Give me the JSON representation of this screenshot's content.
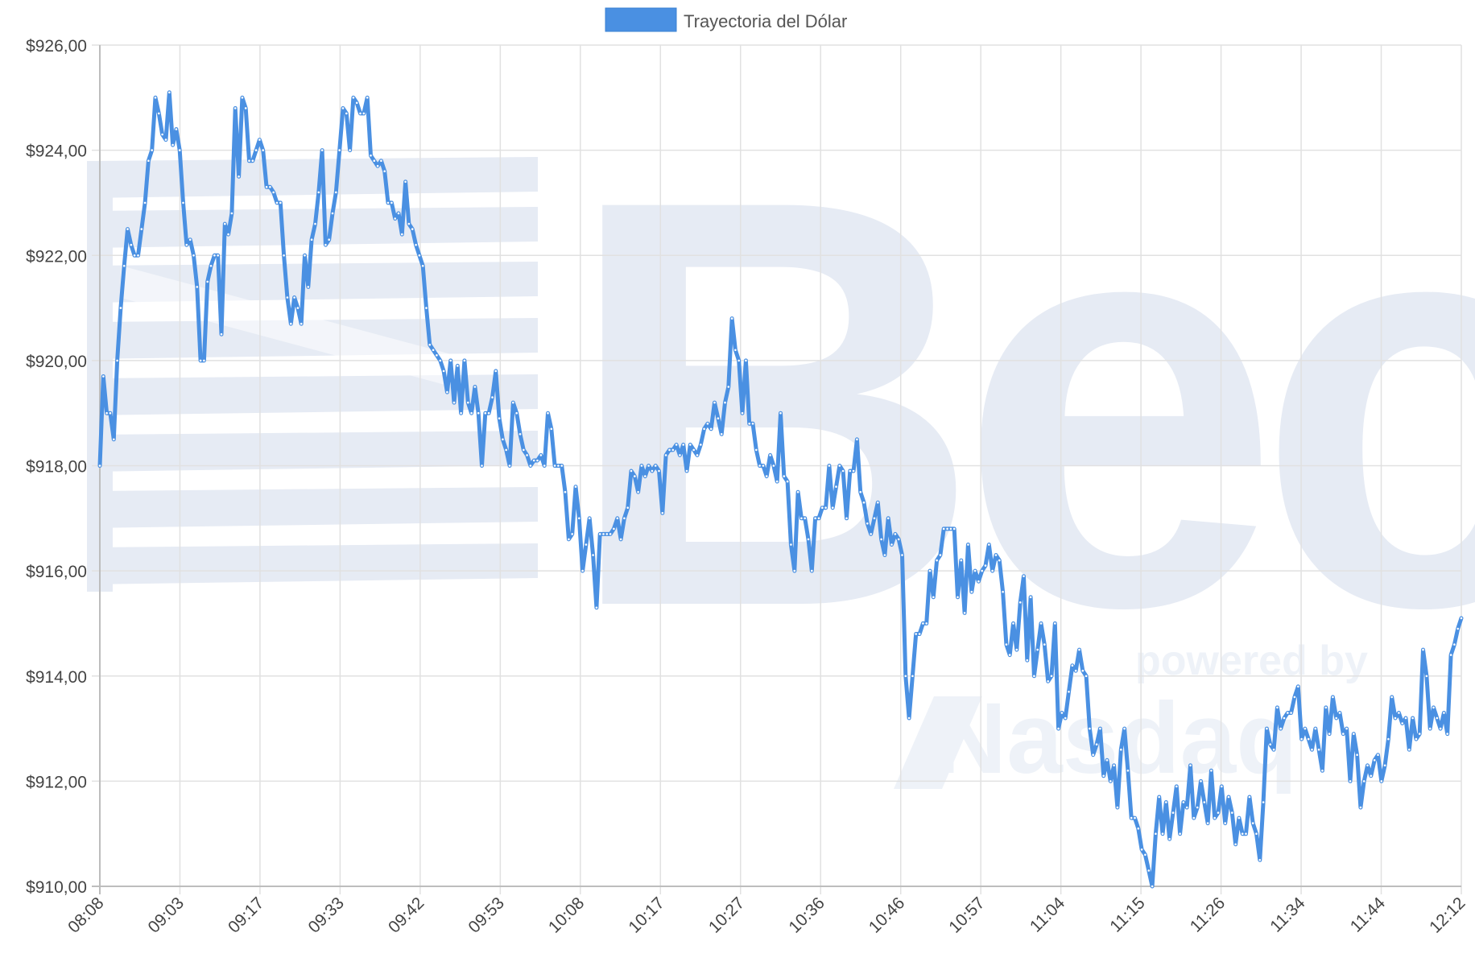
{
  "chart_data": {
    "type": "line",
    "title": "",
    "xlabel": "",
    "ylabel": "",
    "ylim": [
      910,
      926
    ],
    "grid": true,
    "legend_position": "top-center",
    "y_ticks": [
      "$910,00",
      "$912,00",
      "$914,00",
      "$916,00",
      "$918,00",
      "$920,00",
      "$922,00",
      "$924,00",
      "$926,00"
    ],
    "x_ticks": [
      "08:08",
      "09:03",
      "09:17",
      "09:33",
      "09:42",
      "09:53",
      "10:08",
      "10:17",
      "10:27",
      "10:36",
      "10:46",
      "10:57",
      "11:04",
      "11:15",
      "11:26",
      "11:34",
      "11:44",
      "12:12"
    ],
    "series": [
      {
        "name": "Trayectoria del Dólar",
        "color": "#4a90e2",
        "values": [
          918.0,
          919.7,
          919.0,
          919.0,
          918.5,
          920.0,
          921.0,
          921.8,
          922.5,
          922.2,
          922.0,
          922.0,
          922.5,
          923.0,
          923.8,
          924.0,
          925.0,
          924.7,
          924.3,
          924.2,
          925.1,
          924.1,
          924.4,
          924.0,
          923.0,
          922.2,
          922.3,
          922.0,
          921.4,
          920.0,
          920.0,
          921.5,
          921.8,
          922.0,
          922.0,
          920.5,
          922.6,
          922.4,
          922.8,
          924.8,
          923.5,
          925.0,
          924.8,
          923.8,
          923.8,
          924.0,
          924.2,
          924.0,
          923.3,
          923.3,
          923.2,
          923.0,
          923.0,
          922.0,
          921.2,
          920.7,
          921.2,
          921.0,
          920.7,
          922.0,
          921.4,
          922.3,
          922.6,
          923.2,
          924.0,
          922.2,
          922.3,
          922.8,
          923.2,
          924.0,
          924.8,
          924.7,
          924.0,
          925.0,
          924.9,
          924.7,
          924.7,
          925.0,
          923.9,
          923.8,
          923.7,
          923.8,
          923.6,
          923.0,
          923.0,
          922.7,
          922.8,
          922.4,
          923.4,
          922.6,
          922.5,
          922.2,
          922.0,
          921.8,
          921.0,
          920.3,
          920.2,
          920.1,
          920.0,
          919.8,
          919.4,
          920.0,
          919.2,
          919.9,
          919.0,
          920.0,
          919.2,
          919.0,
          919.5,
          919.0,
          918.0,
          919.0,
          919.0,
          919.3,
          919.8,
          918.9,
          918.5,
          918.3,
          918.0,
          919.2,
          919.0,
          918.6,
          918.3,
          918.2,
          918.0,
          918.1,
          918.1,
          918.2,
          918.0,
          919.0,
          918.7,
          918.0,
          918.0,
          918.0,
          917.5,
          916.6,
          916.7,
          917.6,
          917.0,
          916.0,
          916.5,
          917.0,
          916.3,
          915.3,
          916.7,
          916.7,
          916.7,
          916.7,
          916.8,
          917.0,
          916.6,
          917.0,
          917.2,
          917.9,
          917.8,
          917.5,
          918.0,
          917.8,
          918.0,
          917.9,
          918.0,
          917.9,
          917.1,
          918.2,
          918.3,
          918.3,
          918.4,
          918.2,
          918.4,
          917.9,
          918.4,
          918.3,
          918.2,
          918.4,
          918.7,
          918.8,
          918.7,
          919.2,
          918.9,
          918.6,
          919.2,
          919.5,
          920.8,
          920.2,
          920.0,
          919.0,
          920.0,
          918.8,
          918.8,
          918.3,
          918.0,
          918.0,
          917.8,
          918.2,
          918.0,
          917.7,
          919.0,
          917.8,
          917.7,
          916.5,
          916.0,
          917.5,
          917.0,
          917.0,
          916.6,
          916.0,
          917.0,
          917.0,
          917.2,
          917.2,
          918.0,
          917.2,
          917.6,
          918.0,
          917.9,
          917.0,
          917.9,
          917.9,
          918.5,
          917.5,
          917.3,
          916.9,
          916.7,
          917.0,
          917.3,
          916.6,
          916.3,
          917.0,
          916.5,
          916.7,
          916.6,
          916.3,
          914.0,
          913.2,
          914.0,
          914.8,
          914.8,
          915.0,
          915.0,
          916.0,
          915.5,
          916.2,
          916.3,
          916.8,
          916.8,
          916.8,
          916.8,
          915.5,
          916.2,
          915.2,
          916.5,
          915.6,
          916.0,
          915.8,
          916.0,
          916.1,
          916.5,
          916.0,
          916.3,
          916.2,
          915.6,
          914.6,
          914.4,
          915.0,
          914.5,
          915.4,
          915.9,
          914.3,
          915.5,
          914.0,
          914.5,
          915.0,
          914.6,
          913.9,
          914.0,
          915.0,
          913.0,
          913.3,
          913.2,
          913.7,
          914.2,
          914.1,
          914.5,
          914.1,
          914.0,
          913.0,
          912.5,
          912.7,
          913.0,
          912.1,
          912.4,
          912.0,
          912.3,
          911.5,
          912.6,
          913.0,
          912.2,
          911.3,
          911.3,
          911.1,
          910.7,
          910.6,
          910.3,
          910.0,
          911.0,
          911.7,
          911.0,
          911.6,
          910.9,
          911.4,
          911.9,
          911.0,
          911.6,
          911.5,
          912.3,
          911.3,
          911.5,
          912.0,
          911.6,
          911.2,
          912.2,
          911.3,
          911.4,
          911.9,
          911.2,
          911.7,
          911.4,
          910.8,
          911.3,
          911.0,
          911.0,
          911.7,
          911.2,
          911.0,
          910.5,
          911.6,
          913.0,
          912.7,
          912.6,
          913.4,
          913.0,
          913.2,
          913.3,
          913.3,
          913.6,
          913.8,
          912.8,
          913.0,
          912.8,
          912.6,
          913.0,
          912.6,
          912.2,
          913.4,
          912.9,
          913.6,
          913.2,
          913.3,
          912.9,
          913.0,
          912.0,
          912.9,
          912.5,
          911.5,
          912.0,
          912.3,
          912.1,
          912.4,
          912.5,
          912.0,
          912.3,
          912.8,
          913.6,
          913.2,
          913.3,
          913.1,
          913.2,
          912.6,
          913.2,
          912.8,
          912.9,
          914.5,
          914.0,
          913.0,
          913.4,
          913.2,
          913.0,
          913.3,
          912.9,
          914.4,
          914.6,
          914.9,
          915.1
        ]
      }
    ],
    "watermark": {
      "text": "Bec",
      "subtext": "powered by",
      "brand": "Nasdaq",
      "color": "#e3e9f4"
    }
  }
}
